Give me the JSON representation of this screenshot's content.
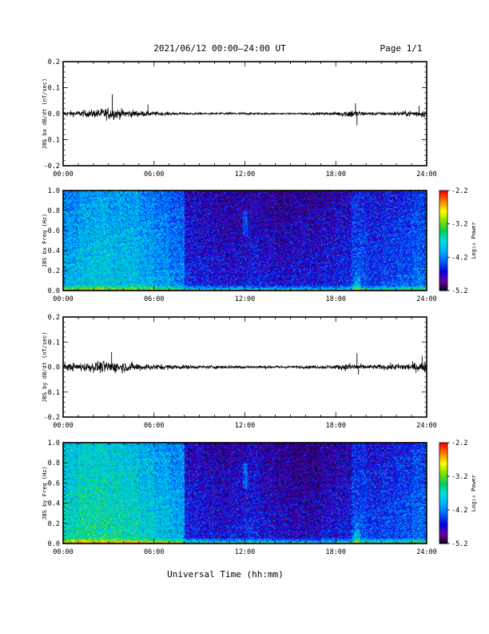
{
  "header": {
    "title": "2021/06/12  00:00–24:00 UT",
    "page": "Page 1/1"
  },
  "footer": {
    "xlabel": "Universal Time (hh:mm)"
  },
  "colors": {
    "trace": "#000000",
    "colormap": [
      "#000000",
      "#6a00a8",
      "#0000e0",
      "#0060ff",
      "#00b0ff",
      "#00e0e0",
      "#00d060",
      "#80e000",
      "#ffff00",
      "#ff8000",
      "#ff0000"
    ]
  },
  "chart_data": [
    {
      "type": "line",
      "panel": "jbs-bx-dbdt",
      "ylabel": "JBS bx dB/dt (nT/sec)",
      "ylim": [
        -0.2,
        0.2
      ],
      "yticks": [
        "0.2",
        "0.1",
        "0.0",
        "-0.1",
        "-0.2"
      ],
      "xlim": [
        0,
        24
      ],
      "xticks": [
        "00:00",
        "06:00",
        "12:00",
        "18:00",
        "24:00"
      ],
      "envelope_hours": [
        0,
        1,
        2,
        3,
        4,
        5,
        6,
        7,
        8,
        9,
        10,
        11,
        12,
        13,
        14,
        15,
        16,
        17,
        18,
        19,
        20,
        21,
        22,
        23,
        24
      ],
      "envelope_amplitude": [
        0.012,
        0.014,
        0.018,
        0.028,
        0.02,
        0.014,
        0.01,
        0.008,
        0.006,
        0.005,
        0.005,
        0.006,
        0.006,
        0.005,
        0.004,
        0.004,
        0.005,
        0.006,
        0.008,
        0.02,
        0.008,
        0.008,
        0.01,
        0.014,
        0.018
      ],
      "spikes": [
        {
          "x": 3.25,
          "y": 0.075
        },
        {
          "x": 5.6,
          "y": 0.035
        },
        {
          "x": 19.3,
          "y": 0.04
        },
        {
          "x": 19.4,
          "y": -0.045
        },
        {
          "x": 23.5,
          "y": 0.03
        }
      ]
    },
    {
      "type": "heatmap",
      "panel": "jbs-bx-spectrogram",
      "ylabel": "JBS bx Freq (Hz)",
      "ylim": [
        0.0,
        1.0
      ],
      "yticks": [
        "1.0",
        "0.8",
        "0.6",
        "0.4",
        "0.2",
        "0.0"
      ],
      "xlim": [
        0,
        24
      ],
      "xticks": [
        "00:00",
        "06:00",
        "12:00",
        "18:00",
        "24:00"
      ],
      "colorbar_label": "Log₁₀ Power",
      "colorbar_ticks": [
        "-2.2",
        "-3.2",
        "-4.2",
        "-5.2"
      ],
      "clim": [
        -5.2,
        -2.2
      ],
      "hour_level": [
        -3.9,
        -3.8,
        -3.75,
        -3.8,
        -3.8,
        -3.9,
        -4.0,
        -4.1,
        -4.5,
        -4.55,
        -4.6,
        -4.6,
        -4.55,
        -4.6,
        -4.65,
        -4.6,
        -4.6,
        -4.55,
        -4.5,
        -4.3,
        -4.4,
        -4.35,
        -4.3,
        -4.2
      ]
    },
    {
      "type": "line",
      "panel": "jbs-by-dbdt",
      "ylabel": "JBS by dB/dt (nT/sec)",
      "ylim": [
        -0.2,
        0.2
      ],
      "yticks": [
        "0.2",
        "0.1",
        "0.0",
        "-0.1",
        "-0.2"
      ],
      "xlim": [
        0,
        24
      ],
      "xticks": [
        "00:00",
        "06:00",
        "12:00",
        "18:00",
        "24:00"
      ],
      "envelope_hours": [
        0,
        1,
        2,
        3,
        4,
        5,
        6,
        7,
        8,
        9,
        10,
        11,
        12,
        13,
        14,
        15,
        16,
        17,
        18,
        19,
        20,
        21,
        22,
        23,
        24
      ],
      "envelope_amplitude": [
        0.016,
        0.02,
        0.024,
        0.03,
        0.024,
        0.018,
        0.014,
        0.012,
        0.01,
        0.008,
        0.008,
        0.008,
        0.008,
        0.007,
        0.007,
        0.006,
        0.007,
        0.008,
        0.01,
        0.02,
        0.01,
        0.012,
        0.016,
        0.02,
        0.024
      ],
      "spikes": [
        {
          "x": 3.2,
          "y": 0.06
        },
        {
          "x": 19.4,
          "y": 0.055
        },
        {
          "x": 19.5,
          "y": -0.03
        },
        {
          "x": 23.7,
          "y": 0.045
        }
      ]
    },
    {
      "type": "heatmap",
      "panel": "jbs-by-spectrogram",
      "ylabel": "JBS by Freq (Hz)",
      "ylim": [
        0.0,
        1.0
      ],
      "yticks": [
        "1.0",
        "0.8",
        "0.6",
        "0.4",
        "0.2",
        "0.0"
      ],
      "xlim": [
        0,
        24
      ],
      "xticks": [
        "00:00",
        "06:00",
        "12:00",
        "18:00",
        "24:00"
      ],
      "colorbar_label": "Log₁₀ Power",
      "colorbar_ticks": [
        "-2.2",
        "-3.2",
        "-4.2",
        "-5.2"
      ],
      "clim": [
        -5.2,
        -2.2
      ],
      "hour_level": [
        -3.6,
        -3.5,
        -3.5,
        -3.55,
        -3.6,
        -3.7,
        -3.8,
        -3.9,
        -4.5,
        -4.55,
        -4.6,
        -4.55,
        -4.5,
        -4.6,
        -4.65,
        -4.7,
        -4.7,
        -4.6,
        -4.55,
        -4.3,
        -4.4,
        -4.35,
        -4.3,
        -4.2
      ]
    }
  ]
}
